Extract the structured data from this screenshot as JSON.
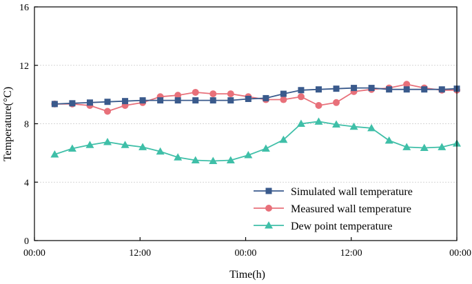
{
  "chart_data": {
    "type": "line",
    "title": "",
    "xlabel": "Time(h)",
    "ylabel": "Temperature(°C)",
    "ylim": [
      0,
      16
    ],
    "xlim": [
      0,
      48
    ],
    "yticks": [
      0,
      4,
      8,
      12,
      16
    ],
    "xticks": [
      {
        "value": 0,
        "label": "00:00"
      },
      {
        "value": 12,
        "label": "12:00"
      },
      {
        "value": 24,
        "label": "00:00"
      },
      {
        "value": 36,
        "label": "12:00"
      },
      {
        "value": 48,
        "label": "00:00"
      }
    ],
    "grid": "horizontal dashed",
    "legend_position": "bottom-right",
    "x": [
      2.3,
      4.3,
      6.3,
      8.3,
      10.3,
      12.3,
      14.3,
      16.3,
      18.3,
      20.3,
      22.3,
      24.3,
      26.3,
      28.3,
      30.3,
      32.3,
      34.3,
      36.3,
      38.3,
      40.3,
      42.3,
      44.3,
      46.3,
      48.0
    ],
    "series": [
      {
        "name": "Simulated  wall temperature",
        "color": "#3a5a8c",
        "marker": "square",
        "values": [
          9.35,
          9.4,
          9.45,
          9.5,
          9.55,
          9.6,
          9.6,
          9.6,
          9.6,
          9.6,
          9.6,
          9.7,
          9.75,
          10.05,
          10.3,
          10.35,
          10.4,
          10.45,
          10.45,
          10.35,
          10.35,
          10.35,
          10.35,
          10.4
        ]
      },
      {
        "name": "Measured wall temperature",
        "color": "#e8707a",
        "marker": "circle",
        "values": [
          9.35,
          9.35,
          9.25,
          8.85,
          9.25,
          9.45,
          9.85,
          9.95,
          10.15,
          10.05,
          10.05,
          9.85,
          9.65,
          9.65,
          9.85,
          9.25,
          9.45,
          10.2,
          10.35,
          10.45,
          10.7,
          10.45,
          10.3,
          10.3
        ]
      },
      {
        "name": "Dew point temperature",
        "color": "#3fbfa8",
        "marker": "triangle",
        "values": [
          5.9,
          6.3,
          6.55,
          6.75,
          6.55,
          6.4,
          6.1,
          5.7,
          5.5,
          5.45,
          5.5,
          5.85,
          6.3,
          6.9,
          8.0,
          8.15,
          7.95,
          7.8,
          7.7,
          6.85,
          6.4,
          6.35,
          6.4,
          6.65
        ]
      }
    ]
  }
}
